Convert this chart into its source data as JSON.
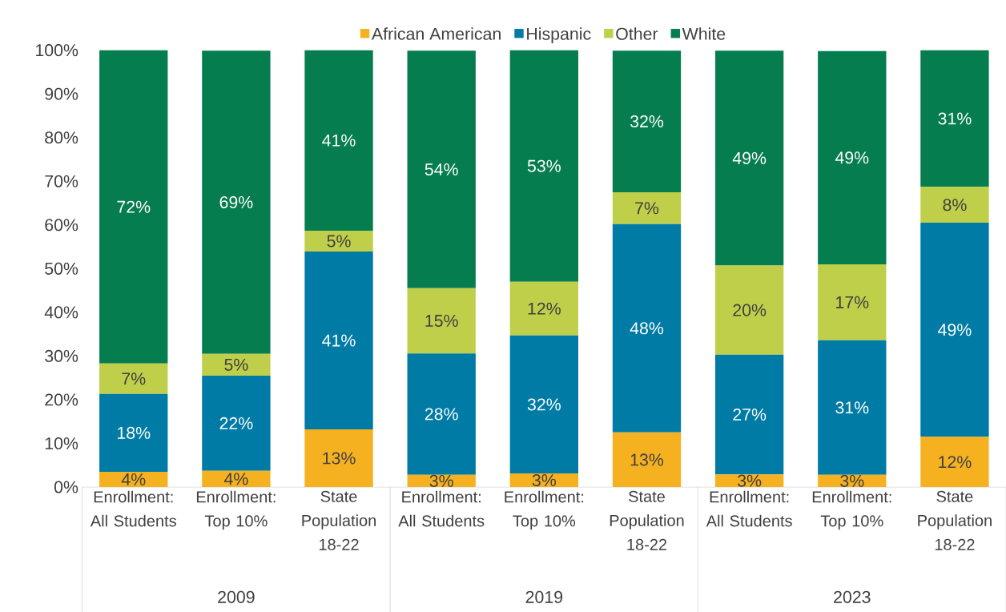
{
  "chart_data": {
    "type": "bar",
    "stacked": true,
    "legend": "top",
    "categories": [
      "Enrollment: All Students",
      "Enrollment: Top 10%",
      "State Population 18-22",
      "Enrollment: All Students",
      "Enrollment: Top 10%",
      "State Population 18-22",
      "Enrollment: All Students",
      "Enrollment: Top 10%",
      "State Population 18-22"
    ],
    "annotations": [
      "2009",
      "2019",
      "2023"
    ],
    "ylim": [
      0,
      100
    ],
    "yticks": [
      {
        "value": 0,
        "label": "0%"
      },
      {
        "value": 10,
        "label": "10%"
      },
      {
        "value": 20,
        "label": "20%"
      },
      {
        "value": 30,
        "label": "30%"
      },
      {
        "value": 40,
        "label": "40%"
      },
      {
        "value": 50,
        "label": "50%"
      },
      {
        "value": 60,
        "label": "60%"
      },
      {
        "value": 70,
        "label": "70%"
      },
      {
        "value": 80,
        "label": "80%"
      },
      {
        "value": 90,
        "label": "90%"
      },
      {
        "value": 100,
        "label": "100%"
      }
    ],
    "series": [
      {
        "name": "African American",
        "color": "#f5b120",
        "values": [
          3.5,
          3.7,
          13.2,
          2.8,
          3.1,
          12.5,
          2.9,
          2.8,
          11.5
        ],
        "value_labels": [
          "4%",
          "4%",
          "13%",
          "3%",
          "3%",
          "13%",
          "3%",
          "3%",
          "12%"
        ]
      },
      {
        "name": "Hispanic",
        "color": "#007ba5",
        "values": [
          17.8,
          21.8,
          40.7,
          27.8,
          31.6,
          47.7,
          27.4,
          30.8,
          49.0
        ],
        "value_labels": [
          "18%",
          "22%",
          "41%",
          "28%",
          "32%",
          "48%",
          "27%",
          "31%",
          "49%"
        ]
      },
      {
        "name": "Other",
        "color": "#bfcf4a",
        "values": [
          7.0,
          5.0,
          4.8,
          14.9,
          12.3,
          7.3,
          20.4,
          17.4,
          8.2
        ],
        "value_labels": [
          "7%",
          "5%",
          "5%",
          "15%",
          "12%",
          "7%",
          "20%",
          "17%",
          "8%"
        ]
      },
      {
        "name": "White",
        "color": "#067d4f",
        "values": [
          71.7,
          69.4,
          41.3,
          54.4,
          53.0,
          32.4,
          49.2,
          48.8,
          31.3
        ],
        "value_labels": [
          "72%",
          "69%",
          "41%",
          "54%",
          "53%",
          "32%",
          "49%",
          "49%",
          "31%"
        ]
      }
    ]
  }
}
